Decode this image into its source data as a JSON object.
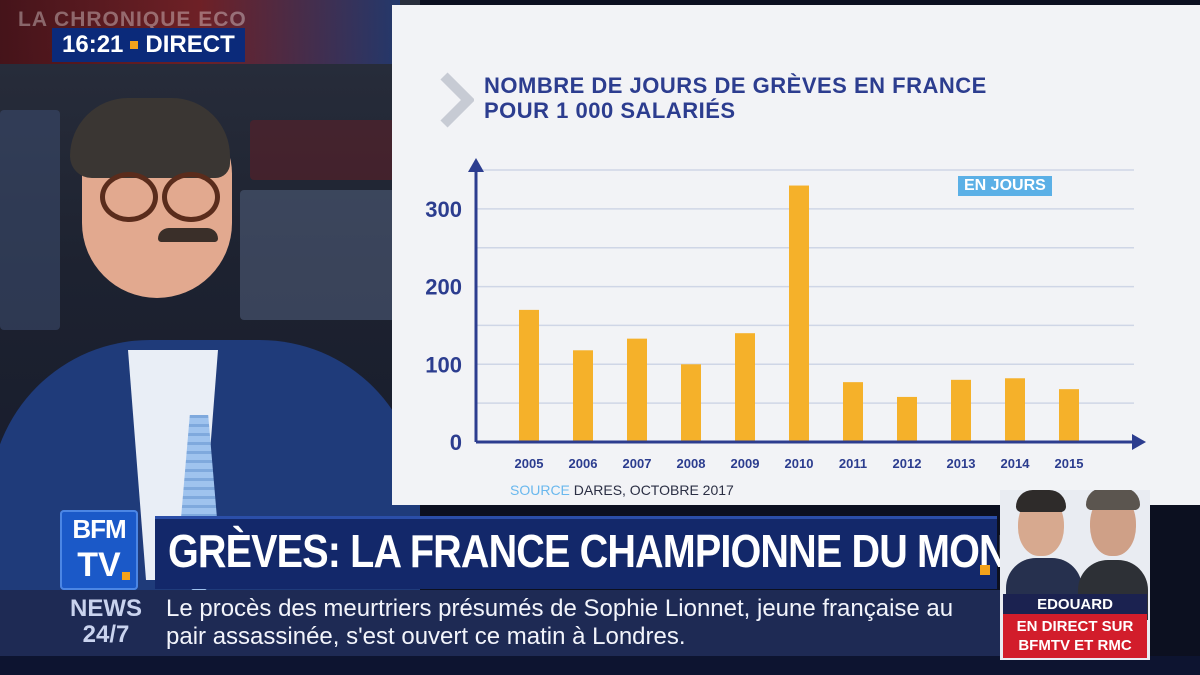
{
  "broadcast": {
    "program": "LA CHRONIQUE ECO",
    "time": "16:21",
    "live_label": "DIRECT",
    "channel_logo_top": "BFM",
    "channel_logo_bottom": "TV",
    "headline": "GRÈVES: LA FRANCE CHAMPIONNE DU MONDE",
    "news_label_line1": "NEWS",
    "news_label_line2": "24/7",
    "ticker": "Le procès des meurtriers présumés de Sophie Lionnet, jeune française au pair assassinée, s'est ouvert ce matin à Londres.",
    "live_person_name": "EDOUARD PHILIPPE",
    "live_status": "EN DIRECT SUR BFMTV ET RMC"
  },
  "colors": {
    "bar": "#f5b12a",
    "title": "#2c3d8f",
    "axis": "#2c3d8f",
    "accent": "#f3a21b",
    "headline_bg": "#13286a",
    "live_red": "#d21d2b"
  },
  "chart_data": {
    "type": "bar",
    "title_line1": "NOMBRE DE JOURS DE GRÈVES EN FRANCE",
    "title_line2": "POUR 1 000 SALARIÉS",
    "unit_label": "EN JOURS",
    "categories": [
      "2005",
      "2006",
      "2007",
      "2008",
      "2009",
      "2010",
      "2011",
      "2012",
      "2013",
      "2014",
      "2015"
    ],
    "values": [
      170,
      118,
      133,
      100,
      140,
      330,
      77,
      58,
      80,
      82,
      68
    ],
    "yticks": [
      0,
      100,
      200,
      300
    ],
    "ylim": [
      0,
      350
    ],
    "grid": true,
    "source_key": "SOURCE",
    "source_value": "DARES, OCTOBRE 2017"
  }
}
